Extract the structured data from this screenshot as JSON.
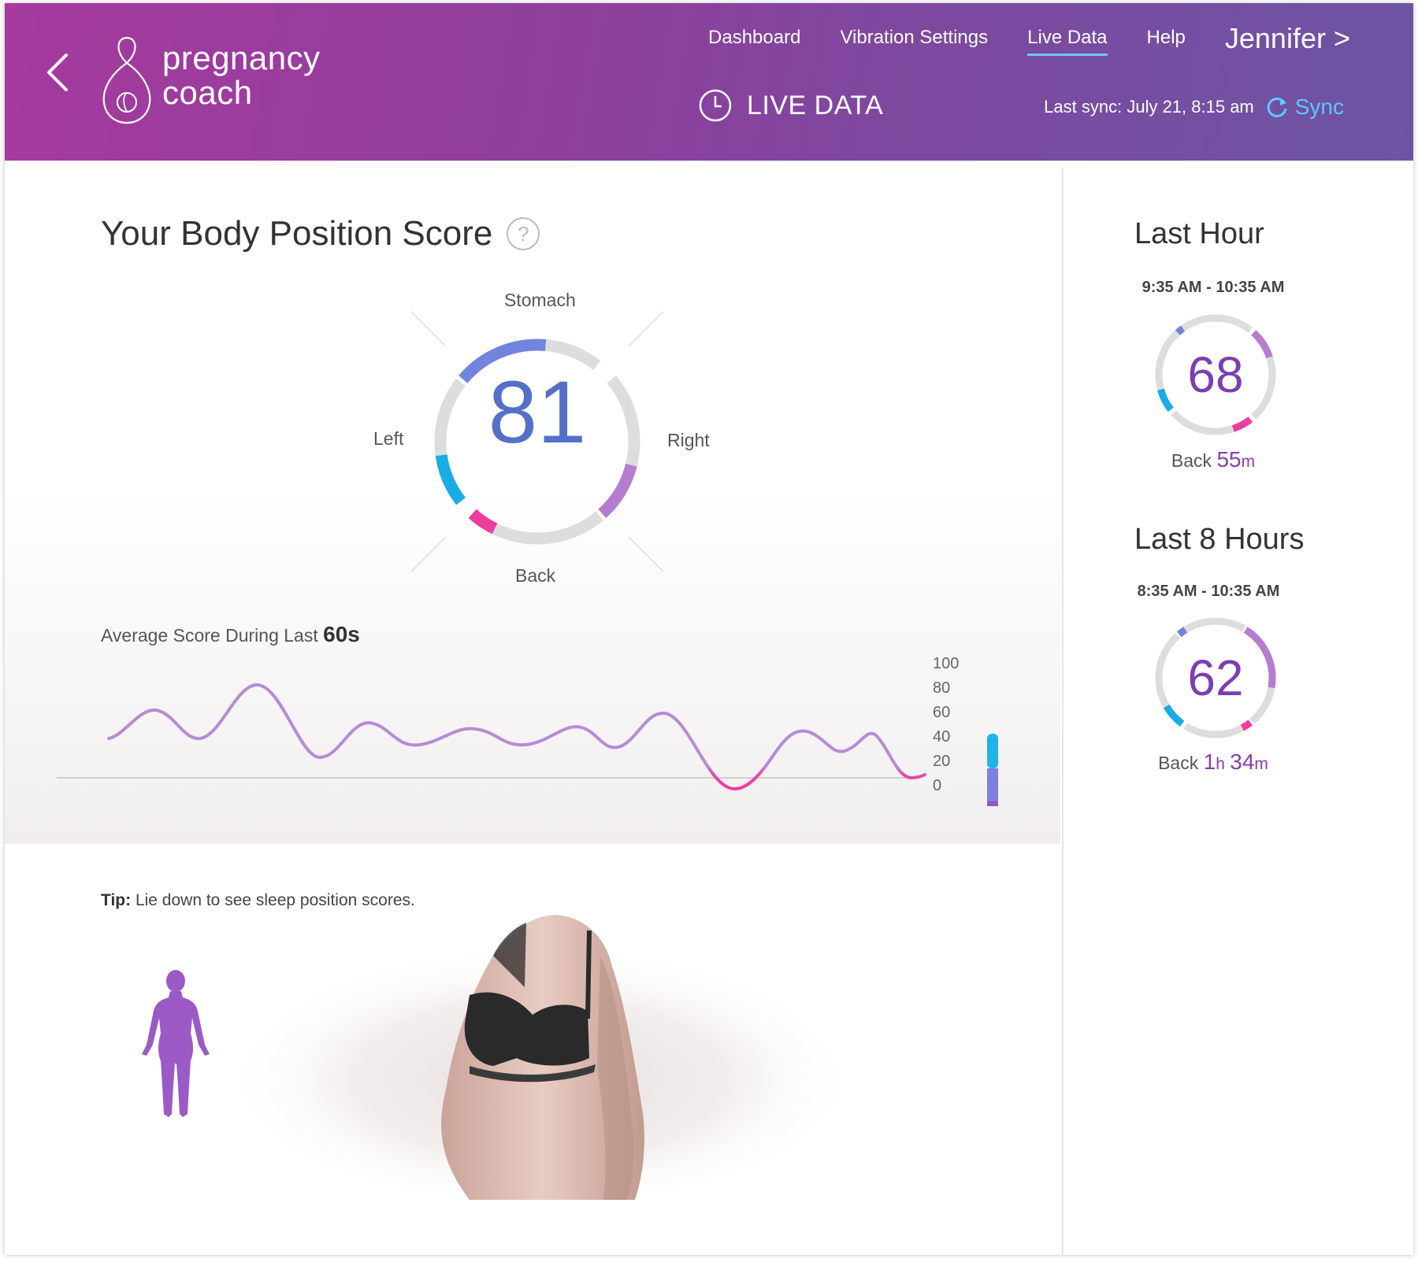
{
  "header": {
    "logo": {
      "line1": "pregnancy",
      "line2": "coach"
    },
    "nav": [
      {
        "label": "Dashboard",
        "active": false
      },
      {
        "label": "Vibration Settings",
        "active": false
      },
      {
        "label": "Live Data",
        "active": true
      },
      {
        "label": "Help",
        "active": false
      }
    ],
    "user": "Jennifer >",
    "section_title": "LIVE DATA",
    "last_sync": "Last sync: July 21, 8:15 am",
    "sync_label": "Sync"
  },
  "score": {
    "title": "Your Body Position Score",
    "value": "81",
    "labels": {
      "top": "Stomach",
      "left": "Left",
      "right": "Right",
      "bottom": "Back"
    }
  },
  "average": {
    "label": "Average Score During Last",
    "window": "60s",
    "y_ticks": [
      "100",
      "80",
      "60",
      "40",
      "20",
      "0"
    ],
    "scale_colors": [
      "#1fb3ea",
      "#7d7fe0",
      "#8e57b8",
      "#b22ab0",
      "#f03aa0"
    ]
  },
  "tip": {
    "prefix": "Tip:",
    "text": "Lie down to see sleep position scores."
  },
  "sidebar": {
    "last_hour": {
      "title": "Last Hour",
      "range": "9:35 AM - 10:35 AM",
      "score": "68",
      "position": "Back",
      "duration": "55",
      "unit": "m"
    },
    "last_8_hours": {
      "title": "Last 8 Hours",
      "range": "8:35 AM - 10:35 AM",
      "score": "62",
      "position": "Back",
      "hours": "1",
      "hours_unit": "h",
      "minutes": "34",
      "minutes_unit": "m"
    }
  },
  "colors": {
    "stomach": "#7185de",
    "left": "#19ace6",
    "right": "#b57cd0",
    "back": "#ee3d9f",
    "track": "#dddddd",
    "score": "#5470c9",
    "side_score": "#7b3fb0"
  }
}
